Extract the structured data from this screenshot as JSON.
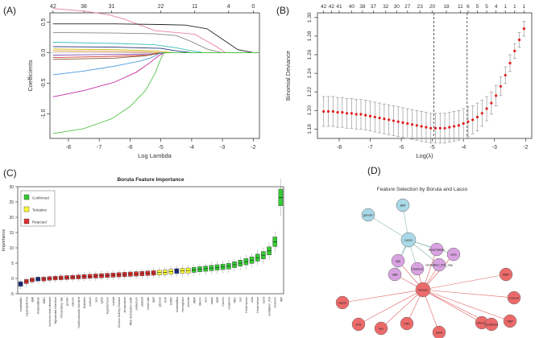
{
  "panels": {
    "a": {
      "label": "(A)"
    },
    "b": {
      "label": "(B)"
    },
    "c": {
      "label": "(C)"
    },
    "d": {
      "label": "(D)"
    }
  },
  "chart_data": [
    {
      "id": "A",
      "type": "line",
      "title": "",
      "xlabel": "Log Lambda",
      "ylabel": "Coefficients",
      "xlim": [
        -8.6,
        -1.8
      ],
      "ylim": [
        -1.4,
        0.65
      ],
      "x_ticks": [
        -8,
        -7,
        -6,
        -5,
        -4,
        -3,
        -2
      ],
      "y_ticks": [
        -1.0,
        -0.5,
        0.0,
        0.5
      ],
      "top_ticks": {
        "x": [
          -8.5,
          -7.5,
          -6.6,
          -5.0,
          -3.9,
          -2.8,
          -2.0
        ],
        "labels": [
          "42",
          "38",
          "31",
          "22",
          "11",
          "4",
          "0"
        ]
      },
      "series": [
        {
          "name": "pink",
          "color": "#e87ea8",
          "x": [
            -8.5,
            -7.5,
            -6.7,
            -6.2,
            -5.2,
            -4.5,
            -3.9,
            -3.2,
            -2.9
          ],
          "values": [
            0.72,
            0.68,
            0.62,
            0.55,
            0.36,
            0.33,
            0.3,
            0.1,
            0.0
          ]
        },
        {
          "name": "black",
          "color": "#222222",
          "x": [
            -8.5,
            -6.5,
            -5.0,
            -4.2,
            -3.5,
            -3.0,
            -2.5,
            -2.0
          ],
          "values": [
            0.47,
            0.47,
            0.46,
            0.45,
            0.39,
            0.22,
            0.05,
            0.0
          ]
        },
        {
          "name": "gray",
          "color": "#888888",
          "x": [
            -8.5,
            -6.5,
            -5.2,
            -4.5,
            -4.0,
            -3.5,
            -3.0
          ],
          "values": [
            0.33,
            0.32,
            0.31,
            0.28,
            0.18,
            0.06,
            0.0
          ]
        },
        {
          "name": "teal",
          "color": "#3bbcbc",
          "x": [
            -8.5,
            -6.5,
            -5.2,
            -4.5,
            -4.0,
            -3.6
          ],
          "values": [
            0.17,
            0.15,
            0.13,
            0.08,
            0.03,
            0.0
          ]
        },
        {
          "name": "darkblue",
          "color": "#223377",
          "x": [
            -8.5,
            -6.5,
            -5.0,
            -4.5,
            -4.0
          ],
          "values": [
            0.1,
            0.09,
            0.07,
            0.03,
            0.0
          ]
        },
        {
          "name": "yellow",
          "color": "#c9b400",
          "x": [
            -8.5,
            -6.5,
            -5.2,
            -4.6
          ],
          "values": [
            0.06,
            0.05,
            0.03,
            0.0
          ]
        },
        {
          "name": "orange",
          "color": "#e58a2b",
          "x": [
            -8.5,
            -6.5,
            -5.5,
            -5.0
          ],
          "values": [
            0.03,
            0.02,
            0.01,
            0.0
          ]
        },
        {
          "name": "purple",
          "color": "#8a4fb0",
          "x": [
            -8.5,
            -6.5,
            -5.3,
            -4.8
          ],
          "values": [
            -0.04,
            -0.03,
            -0.02,
            0.0
          ]
        },
        {
          "name": "red",
          "color": "#d23c3c",
          "x": [
            -8.5,
            -6.5,
            -5.4,
            -4.9
          ],
          "values": [
            -0.08,
            -0.06,
            -0.04,
            0.0
          ]
        },
        {
          "name": "brown",
          "color": "#8b5a2b",
          "x": [
            -8.5,
            -6.5,
            -5.5,
            -5.0
          ],
          "values": [
            -0.11,
            -0.09,
            -0.05,
            0.0
          ]
        },
        {
          "name": "blue",
          "color": "#4b9be0",
          "x": [
            -8.5,
            -7.5,
            -6.5,
            -5.7,
            -5.3,
            -5.0
          ],
          "values": [
            -0.36,
            -0.3,
            -0.22,
            -0.14,
            -0.08,
            0.0
          ]
        },
        {
          "name": "magenta",
          "color": "#c22aa0",
          "x": [
            -8.5,
            -7.5,
            -6.5,
            -5.8,
            -5.4,
            -5.1,
            -4.9
          ],
          "values": [
            -0.72,
            -0.62,
            -0.48,
            -0.32,
            -0.18,
            -0.06,
            0.0
          ]
        },
        {
          "name": "green",
          "color": "#55c24b",
          "x": [
            -8.5,
            -7.5,
            -6.6,
            -6.0,
            -5.5,
            -5.2,
            -5.0,
            -4.9
          ],
          "values": [
            -1.32,
            -1.24,
            -1.08,
            -0.88,
            -0.62,
            -0.35,
            -0.1,
            0.0
          ]
        }
      ]
    },
    {
      "id": "B",
      "type": "scatter",
      "title": "",
      "xlabel": "Log(λ)",
      "ylabel": "Binomial Deviance",
      "xlim": [
        -8.7,
        -1.8
      ],
      "ylim": [
        1.17,
        1.305
      ],
      "x_ticks": [
        -8,
        -7,
        -6,
        -5,
        -4,
        -3,
        -2
      ],
      "y_ticks": [
        1.18,
        1.2,
        1.22,
        1.24,
        1.26,
        1.28,
        1.3
      ],
      "top_ticks": {
        "x": [
          -8.5,
          -8.25,
          -8.0,
          -7.6,
          -7.25,
          -6.9,
          -6.5,
          -6.15,
          -5.8,
          -5.4,
          -5.0,
          -4.55,
          -4.1,
          -3.85,
          -3.55,
          -3.25,
          -2.95,
          -2.65,
          -2.35,
          -2.05
        ],
        "labels": [
          "42",
          "42",
          "41",
          "40",
          "38",
          "37",
          "32",
          "30",
          "27",
          "23",
          "20",
          "18",
          "11",
          "6",
          "5",
          "5",
          "4",
          "1",
          "1",
          "1"
        ]
      },
      "vlines": [
        -4.95,
        -3.88
      ],
      "x": [
        -8.5,
        -8.35,
        -8.2,
        -8.05,
        -7.9,
        -7.75,
        -7.6,
        -7.45,
        -7.3,
        -7.15,
        -7.0,
        -6.85,
        -6.7,
        -6.55,
        -6.4,
        -6.25,
        -6.1,
        -5.95,
        -5.8,
        -5.65,
        -5.5,
        -5.35,
        -5.2,
        -5.05,
        -4.9,
        -4.75,
        -4.6,
        -4.45,
        -4.3,
        -4.15,
        -4.0,
        -3.85,
        -3.7,
        -3.55,
        -3.4,
        -3.25,
        -3.1,
        -2.95,
        -2.8,
        -2.65,
        -2.5,
        -2.35,
        -2.2,
        -2.05
      ],
      "values": [
        1.199,
        1.199,
        1.199,
        1.198,
        1.198,
        1.197,
        1.197,
        1.196,
        1.196,
        1.195,
        1.194,
        1.193,
        1.192,
        1.191,
        1.19,
        1.189,
        1.188,
        1.187,
        1.186,
        1.185,
        1.184,
        1.183,
        1.182,
        1.181,
        1.181,
        1.181,
        1.181,
        1.182,
        1.183,
        1.184,
        1.186,
        1.188,
        1.19,
        1.193,
        1.197,
        1.202,
        1.208,
        1.216,
        1.226,
        1.238,
        1.251,
        1.264,
        1.276,
        1.288
      ],
      "errors": [
        0.016,
        0.016,
        0.016,
        0.016,
        0.016,
        0.016,
        0.016,
        0.016,
        0.016,
        0.016,
        0.016,
        0.016,
        0.016,
        0.016,
        0.016,
        0.016,
        0.016,
        0.016,
        0.016,
        0.016,
        0.016,
        0.016,
        0.016,
        0.016,
        0.016,
        0.016,
        0.016,
        0.016,
        0.016,
        0.016,
        0.016,
        0.016,
        0.015,
        0.015,
        0.014,
        0.013,
        0.012,
        0.011,
        0.01,
        0.009,
        0.009,
        0.008,
        0.008,
        0.008
      ]
    },
    {
      "id": "C",
      "type": "bar",
      "title": "Boruta Feature Importance",
      "xlabel": "",
      "ylabel": "Importance",
      "ylim": [
        -5,
        30
      ],
      "y_ticks": [
        -5,
        0,
        5,
        10,
        15,
        20,
        25,
        30
      ],
      "legend": [
        {
          "label": "Confirmed",
          "color": "#33cc33"
        },
        {
          "label": "Tentative",
          "color": "#ffff33"
        },
        {
          "label": "Rejected",
          "color": "#e03030"
        }
      ],
      "categories": [
        "shadowMin",
        "Hyperlipidemia",
        "BMI",
        "shadowMean",
        "WBC",
        "Ischemic heart disease",
        "Myocardial Infarction",
        "Respiratory rate",
        "gender",
        "calcium",
        "Cardiovascular Accident",
        "Diabetes",
        "sodium",
        "race",
        "spO2",
        "Hypertension",
        "marital",
        "Chronic Kidney Disease",
        "temperature",
        "RBC distribution width",
        "potassium",
        "platelet",
        "Heart rate",
        "SBP",
        "glucose",
        "CHF",
        "COPD",
        "shadowMax",
        "hemoglobin",
        "chloride",
        "MBP",
        "Mechv",
        "aniv",
        "sapsii",
        "DBP",
        "Cancer",
        "creatinine",
        "PBC",
        "bun",
        "Heart failure",
        "sofa",
        "Heart failure",
        "band",
        "ventilation_first",
        "charlson",
        "age"
      ],
      "values": [
        -1.8,
        -1.0,
        -0.5,
        -0.2,
        -0.2,
        0.0,
        0.1,
        0.2,
        0.3,
        0.4,
        0.5,
        0.6,
        0.7,
        0.8,
        0.9,
        1.0,
        1.1,
        1.2,
        1.3,
        1.4,
        1.5,
        1.6,
        1.7,
        1.8,
        1.9,
        2.0,
        2.2,
        2.4,
        2.5,
        2.6,
        2.8,
        3.0,
        3.2,
        3.4,
        3.6,
        3.8,
        4.0,
        4.5,
        5.0,
        5.5,
        6.0,
        6.8,
        7.6,
        9.0,
        12.0,
        26.5
      ],
      "status": [
        "shadow",
        "rejected",
        "rejected",
        "shadow",
        "rejected",
        "rejected",
        "rejected",
        "rejected",
        "rejected",
        "rejected",
        "rejected",
        "rejected",
        "rejected",
        "rejected",
        "rejected",
        "rejected",
        "rejected",
        "rejected",
        "rejected",
        "rejected",
        "rejected",
        "rejected",
        "rejected",
        "rejected",
        "tentative",
        "tentative",
        "tentative",
        "shadow",
        "tentative",
        "tentative",
        "confirmed",
        "confirmed",
        "confirmed",
        "confirmed",
        "confirmed",
        "confirmed",
        "confirmed",
        "confirmed",
        "confirmed",
        "confirmed",
        "confirmed",
        "confirmed",
        "confirmed",
        "confirmed",
        "confirmed",
        "confirmed"
      ]
    },
    {
      "id": "D",
      "type": "network",
      "title": "Feature Selection by Boruta and Lasso",
      "nodes": [
        {
          "id": "gender",
          "label": "gender",
          "group": "lasso"
        },
        {
          "id": "BMI",
          "label": "BMI",
          "group": "lasso"
        },
        {
          "id": "Lasso",
          "label": "Lasso",
          "group": "lasso"
        },
        {
          "id": "HeartFailure",
          "label": "Heart failure",
          "group": "both"
        },
        {
          "id": "sofa",
          "label": "sofa",
          "group": "both"
        },
        {
          "id": "age",
          "label": "age",
          "group": "both"
        },
        {
          "id": "ventilation",
          "label": "ventilation_first_day",
          "group": "both"
        },
        {
          "id": "charlson",
          "label": "charlson",
          "group": "both"
        },
        {
          "id": "SBB",
          "label": "SBB",
          "group": "both"
        },
        {
          "id": "Boruta",
          "label": "Boruta",
          "group": "boruta"
        },
        {
          "id": "MBP",
          "label": "MBP",
          "group": "boruta"
        },
        {
          "id": "Cancer",
          "label": "Cancer",
          "group": "boruta"
        },
        {
          "id": "DBP",
          "label": "DBP",
          "group": "boruta"
        },
        {
          "id": "sapsii",
          "label": "sapsii",
          "group": "boruta"
        },
        {
          "id": "aniv",
          "label": "aniv",
          "group": "boruta"
        },
        {
          "id": "PBC",
          "label": "PBC",
          "group": "boruta"
        },
        {
          "id": "Mechv",
          "label": "Mechv",
          "group": "boruta"
        },
        {
          "id": "creatinine",
          "label": "creatinine",
          "group": "boruta"
        },
        {
          "id": "bun",
          "label": "bun",
          "group": "boruta"
        },
        {
          "id": "band",
          "label": "band",
          "group": "boruta"
        }
      ],
      "edges": [
        [
          "Lasso",
          "gender"
        ],
        [
          "Lasso",
          "BMI"
        ],
        [
          "Lasso",
          "HeartFailure"
        ],
        [
          "Lasso",
          "sofa"
        ],
        [
          "Lasso",
          "age"
        ],
        [
          "Lasso",
          "ventilation"
        ],
        [
          "Lasso",
          "charlson"
        ],
        [
          "Lasso",
          "SBB"
        ],
        [
          "Boruta",
          "HeartFailure"
        ],
        [
          "Boruta",
          "sofa"
        ],
        [
          "Boruta",
          "age"
        ],
        [
          "Boruta",
          "ventilation"
        ],
        [
          "Boruta",
          "charlson"
        ],
        [
          "Boruta",
          "SBB"
        ],
        [
          "Boruta",
          "MBP"
        ],
        [
          "Boruta",
          "Cancer"
        ],
        [
          "Boruta",
          "DBP"
        ],
        [
          "Boruta",
          "sapsii"
        ],
        [
          "Boruta",
          "aniv"
        ],
        [
          "Boruta",
          "PBC"
        ],
        [
          "Boruta",
          "Mechv"
        ],
        [
          "Boruta",
          "creatinine"
        ],
        [
          "Boruta",
          "bun"
        ],
        [
          "Boruta",
          "band"
        ]
      ],
      "colors": {
        "lasso": "#a9d8e6",
        "both": "#d8a2e0",
        "boruta": "#ec6a6a",
        "edge_lasso": "#88b8b0",
        "edge_boruta": "#e06060"
      }
    }
  ]
}
